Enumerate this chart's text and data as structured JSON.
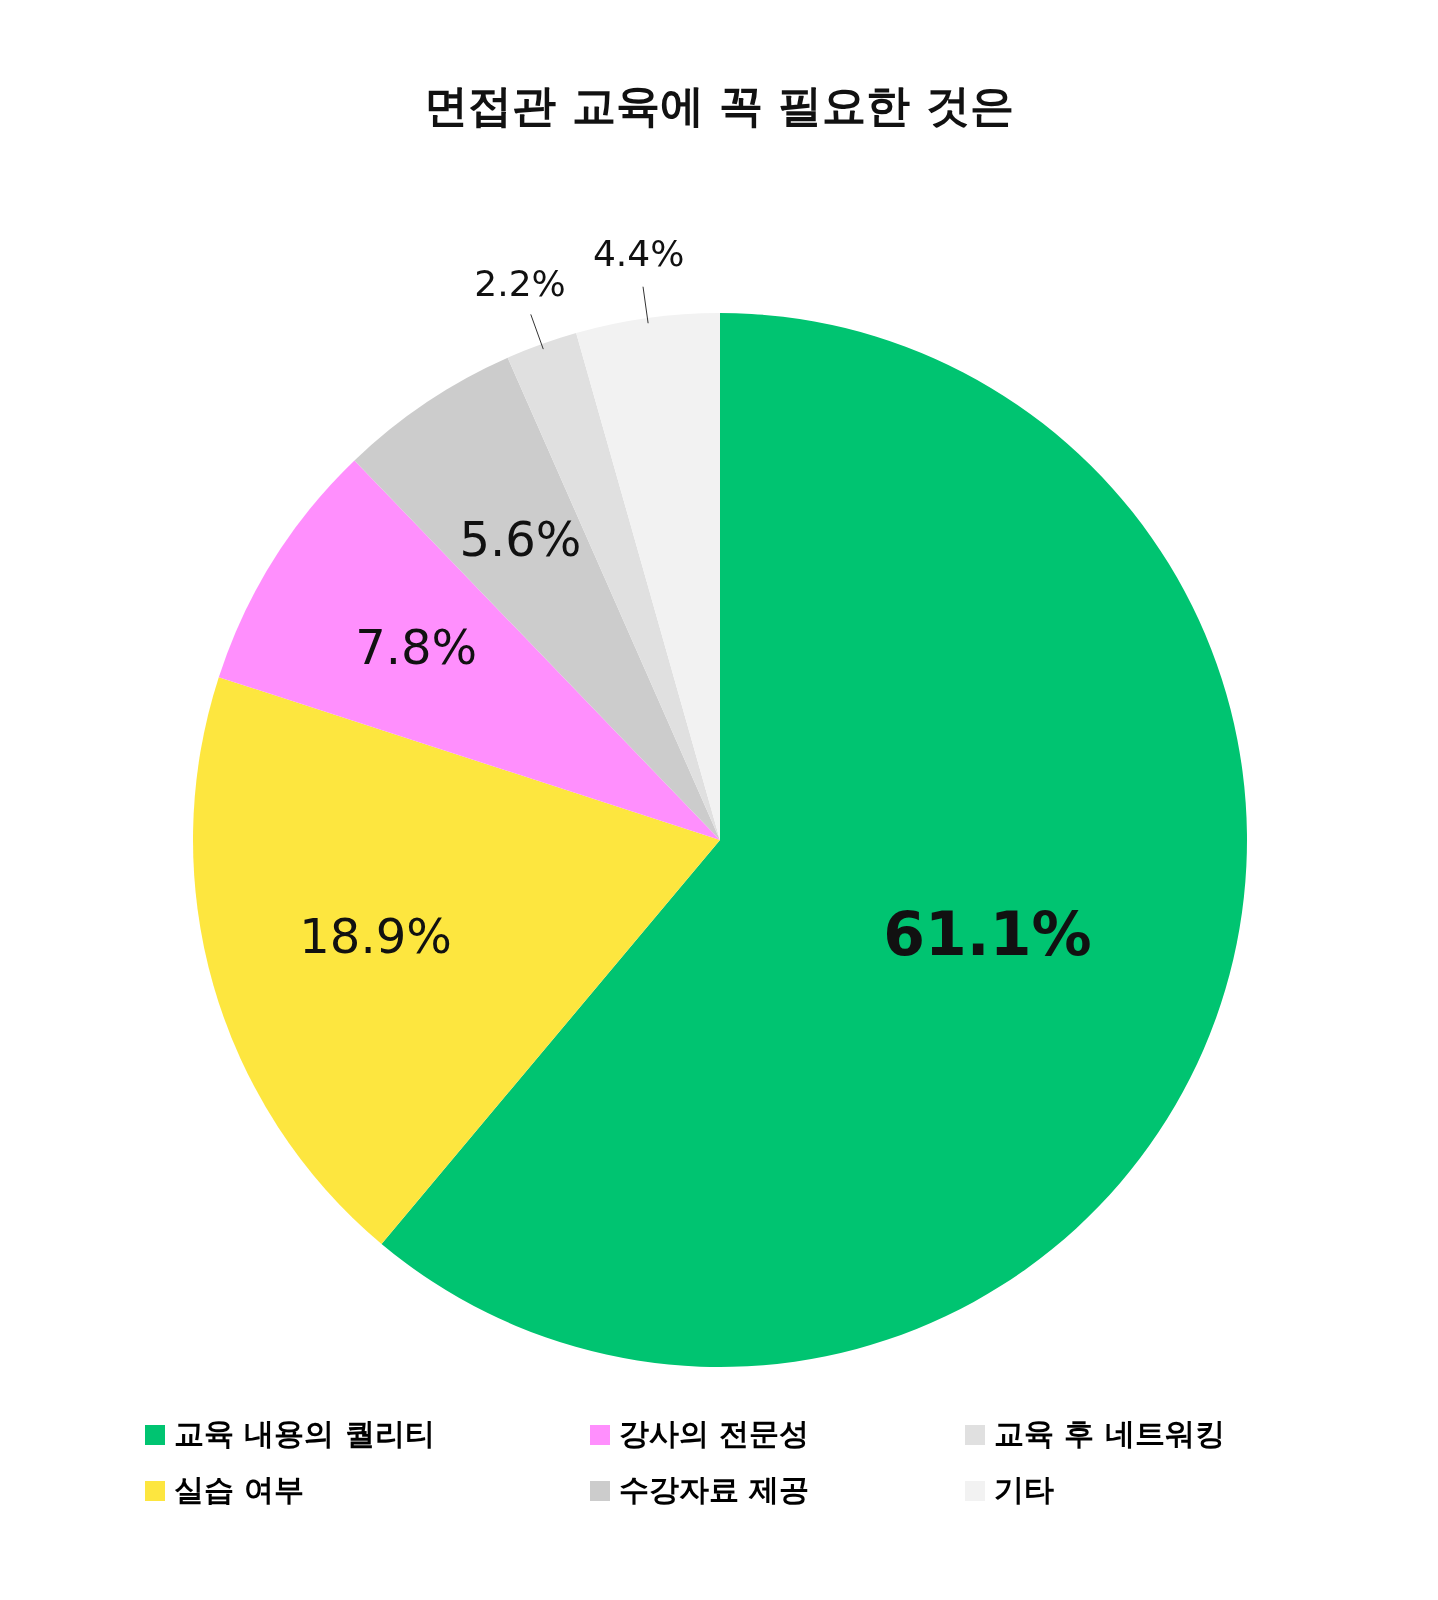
{
  "chart_data": {
    "type": "pie",
    "title": "면접관 교육에 꼭 필요한 것은",
    "categories": [
      "교육 내용의 퀄리티",
      "실습 여부",
      "강사의 전문성",
      "수강자료 제공",
      "교육 후 네트워킹",
      "기타"
    ],
    "values": [
      61.1,
      18.9,
      7.8,
      5.6,
      2.2,
      4.4
    ],
    "colors": [
      "#00c471",
      "#fde63f",
      "#ff8ffd",
      "#cccccc",
      "#e0e0e0",
      "#f2f2f2"
    ],
    "value_labels": [
      "61.1%",
      "18.9%",
      "7.8%",
      "5.6%",
      "2.2%",
      "4.4%"
    ],
    "legend": "bottom"
  }
}
